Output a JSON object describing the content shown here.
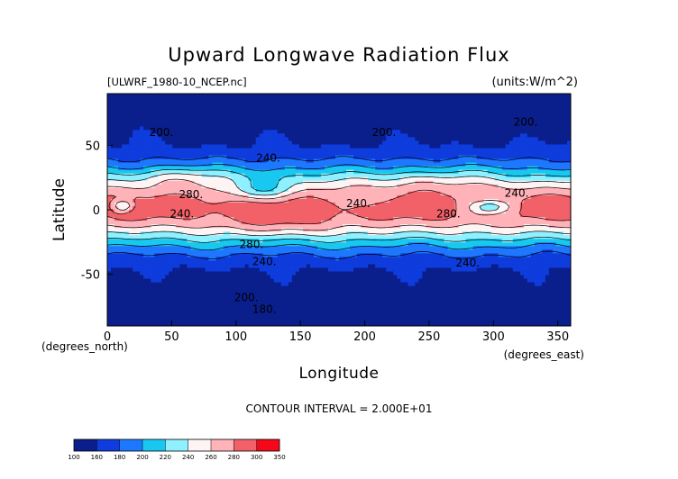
{
  "chart_data": {
    "type": "contour",
    "title": "Upward Longwave Radiation Flux",
    "source_label": "[ULWRF_1980-10_NCEP.nc]",
    "units_label": "(units:W/m^2)",
    "xlabel": "Longitude",
    "ylabel": "Latitude",
    "x_unit_label": "(degrees_east)",
    "y_unit_label": "(degrees_north)",
    "xlim": [
      0,
      360
    ],
    "ylim": [
      -90,
      90
    ],
    "x_ticks": [
      0,
      50,
      100,
      150,
      200,
      250,
      300,
      350
    ],
    "y_ticks": [
      -50,
      0,
      50
    ],
    "contour_interval_text": "CONTOUR INTERVAL = 2.000E+01",
    "contour_labels": [
      {
        "text": "200.",
        "lon": 42,
        "lat": 60
      },
      {
        "text": "200.",
        "lon": 215,
        "lat": 60
      },
      {
        "text": "200.",
        "lon": 325,
        "lat": 68
      },
      {
        "text": "240.",
        "lon": 125,
        "lat": 40
      },
      {
        "text": "280.",
        "lon": 65,
        "lat": 12
      },
      {
        "text": "240.",
        "lon": 58,
        "lat": -3
      },
      {
        "text": "240.",
        "lon": 195,
        "lat": 5
      },
      {
        "text": "240.",
        "lon": 318,
        "lat": 13
      },
      {
        "text": "280.",
        "lon": 265,
        "lat": -3
      },
      {
        "text": "280.",
        "lon": 112,
        "lat": -27
      },
      {
        "text": "240.",
        "lon": 122,
        "lat": -40
      },
      {
        "text": "240.",
        "lon": 280,
        "lat": -41
      },
      {
        "text": "200.",
        "lon": 108,
        "lat": -68
      },
      {
        "text": "180.",
        "lon": 122,
        "lat": -77
      }
    ],
    "colorbar": {
      "levels": [
        100,
        160,
        180,
        200,
        220,
        240,
        260,
        280,
        300,
        350
      ],
      "colors": [
        "#0a1e8c",
        "#0f3cdc",
        "#1e78ff",
        "#18c8f0",
        "#8ff0ff",
        "#fff4f4",
        "#ffb2b8",
        "#f26068",
        "#f5081a"
      ]
    }
  }
}
